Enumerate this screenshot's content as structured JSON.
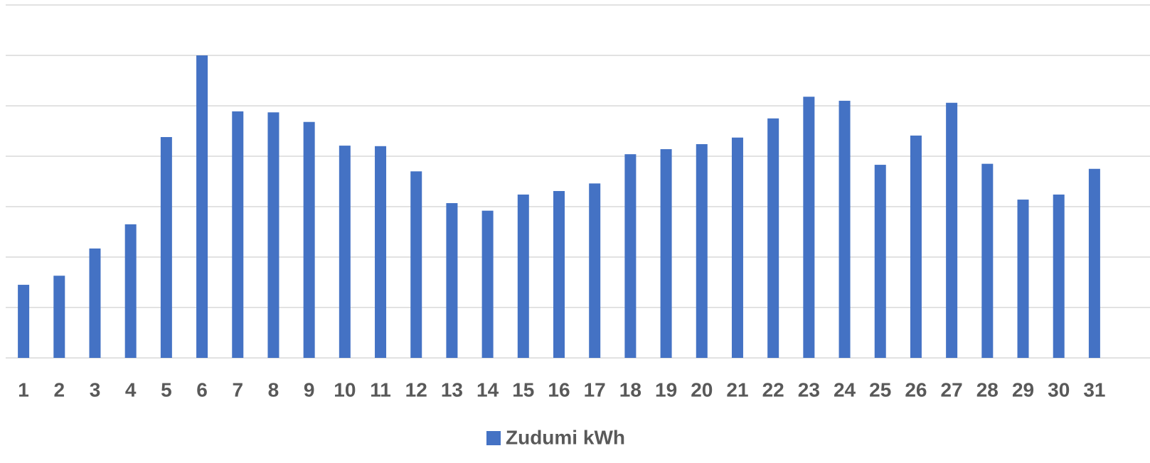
{
  "chart_data": {
    "type": "bar",
    "categories": [
      "1",
      "2",
      "3",
      "4",
      "5",
      "6",
      "7",
      "8",
      "9",
      "10",
      "11",
      "12",
      "13",
      "14",
      "15",
      "16",
      "17",
      "18",
      "19",
      "20",
      "21",
      "22",
      "23",
      "24",
      "25",
      "26",
      "27",
      "28",
      "29",
      "30",
      "31"
    ],
    "series": [
      {
        "name": "Zudumi kWh",
        "color": "#4472c4",
        "values": [
          1.45,
          1.63,
          2.17,
          2.65,
          4.38,
          6.0,
          4.89,
          4.87,
          4.68,
          4.21,
          4.2,
          3.7,
          3.07,
          2.92,
          3.24,
          3.31,
          3.46,
          4.04,
          4.14,
          4.24,
          4.37,
          4.75,
          5.18,
          5.1,
          3.83,
          4.41,
          5.06,
          3.85,
          3.14,
          3.24,
          3.75
        ]
      }
    ],
    "ylim": [
      0,
      7
    ],
    "yticks": [
      0,
      1,
      2,
      3,
      4,
      5,
      6,
      7
    ],
    "grid": true,
    "legend": "bottom"
  }
}
